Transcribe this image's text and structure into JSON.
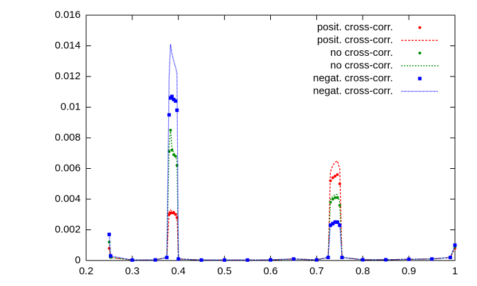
{
  "chart_data": {
    "type": "line",
    "x": [
      0.25,
      0.253,
      0.3,
      0.35,
      0.375,
      0.38,
      0.383,
      0.386,
      0.39,
      0.394,
      0.397,
      0.4,
      0.45,
      0.5,
      0.55,
      0.6,
      0.65,
      0.7,
      0.725,
      0.73,
      0.735,
      0.74,
      0.745,
      0.75,
      0.755,
      0.8,
      0.85,
      0.9,
      0.95,
      0.99,
      1.0
    ],
    "series": [
      {
        "name": "posit. cross-corr.",
        "style": "points",
        "color": "#ff0000",
        "values": [
          0.0008,
          0.0002,
          3e-05,
          4e-05,
          0.0002,
          0.003,
          0.0031,
          0.0031,
          0.0031,
          0.003,
          0.0028,
          0.0001,
          3e-05,
          3e-05,
          3e-05,
          4e-05,
          0.0001,
          4e-05,
          0.0002,
          0.0052,
          0.0054,
          0.0055,
          0.0056,
          0.005,
          0.0002,
          5e-05,
          5e-05,
          8e-05,
          0.0001,
          0.0002,
          0.0008
        ]
      },
      {
        "name": "posit. cross-corr.",
        "style": "lines",
        "color": "#ff0000",
        "values": [
          0.0008,
          0.0002,
          3e-05,
          4e-05,
          0.0002,
          0.0032,
          0.0033,
          0.0032,
          0.0032,
          0.0031,
          0.003,
          0.0001,
          3e-05,
          3e-05,
          3e-05,
          4e-05,
          0.0001,
          4e-05,
          0.0002,
          0.0058,
          0.0062,
          0.0064,
          0.0065,
          0.006,
          0.0002,
          5e-05,
          5e-05,
          8e-05,
          0.0001,
          0.0002,
          0.0008
        ]
      },
      {
        "name": "no cross-corr.",
        "style": "points",
        "color": "#008c00",
        "values": [
          0.0012,
          0.0002,
          3e-05,
          4e-05,
          0.0002,
          0.0071,
          0.0085,
          0.0072,
          0.0069,
          0.0068,
          0.0062,
          0.0001,
          3e-05,
          3e-05,
          3e-05,
          4e-05,
          0.0001,
          4e-05,
          0.0002,
          0.0038,
          0.004,
          0.0041,
          0.0041,
          0.0036,
          0.0002,
          5e-05,
          5e-05,
          8e-05,
          0.0001,
          0.0002,
          0.0009
        ]
      },
      {
        "name": "no cross-corr.",
        "style": "lines",
        "color": "#008c00",
        "values": [
          0.0012,
          0.0002,
          3e-05,
          4e-05,
          0.0002,
          0.0075,
          0.0086,
          0.0074,
          0.007,
          0.0069,
          0.0064,
          0.0001,
          3e-05,
          3e-05,
          3e-05,
          4e-05,
          0.0001,
          4e-05,
          0.0002,
          0.004,
          0.0042,
          0.0043,
          0.0043,
          0.0038,
          0.0002,
          5e-05,
          5e-05,
          8e-05,
          0.0001,
          0.0002,
          0.0009
        ]
      },
      {
        "name": "negat. cross-corr.",
        "style": "points",
        "color": "#0000ff",
        "values": [
          0.0017,
          0.0003,
          3e-05,
          4e-05,
          0.0002,
          0.0095,
          0.0106,
          0.0107,
          0.0105,
          0.0104,
          0.0098,
          0.0001,
          3e-05,
          3e-05,
          3e-05,
          4e-05,
          0.0001,
          4e-05,
          0.0002,
          0.0023,
          0.0024,
          0.0025,
          0.0025,
          0.0023,
          0.0002,
          5e-05,
          5e-05,
          8e-05,
          0.0001,
          0.0002,
          0.001
        ]
      },
      {
        "name": "negat. cross-corr.",
        "style": "lines",
        "color": "#0000ff",
        "values": [
          0.0017,
          0.0003,
          3e-05,
          4e-05,
          0.0002,
          0.012,
          0.0141,
          0.0135,
          0.013,
          0.0126,
          0.0122,
          0.0001,
          3e-05,
          3e-05,
          3e-05,
          4e-05,
          0.0001,
          4e-05,
          0.0002,
          0.0024,
          0.0025,
          0.0026,
          0.0026,
          0.0024,
          0.0002,
          5e-05,
          5e-05,
          8e-05,
          0.0001,
          0.0002,
          0.001
        ]
      }
    ],
    "xlim": [
      0.2,
      1
    ],
    "xticks": [
      0.2,
      0.3,
      0.4,
      0.5,
      0.6,
      0.7,
      0.8,
      0.9,
      1
    ],
    "ylim": [
      0,
      0.016
    ],
    "yticks": [
      0,
      0.002,
      0.004,
      0.006,
      0.008,
      0.01,
      0.012,
      0.014,
      0.016
    ],
    "grid": false,
    "legend": "top-right"
  }
}
